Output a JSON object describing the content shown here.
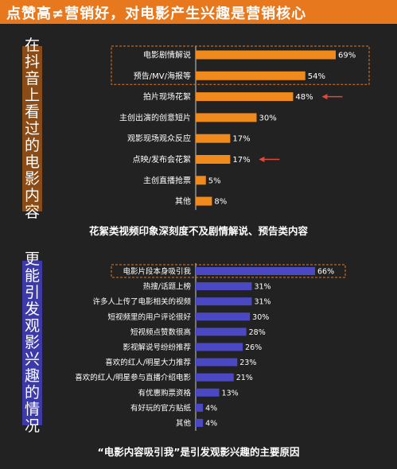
{
  "header": {
    "title": "点赞高≠营销好，对电影产生兴趣是营销核心"
  },
  "section1": {
    "side_label": "在抖音上看过的电影内容",
    "caption": "花絮类视频印象深刻度不及剧情解说、预告类内容"
  },
  "section2": {
    "side_label": "更能引发观影兴趣的情况",
    "caption": "“电影内容吸引我”是引发观影兴趣的主要原因"
  },
  "colors": {
    "header": "#e8781e",
    "orange_bar": "#f08a1c",
    "blue_bar": "#4b48c4",
    "arrow": "#e2473a",
    "background": "#222222"
  },
  "chart_data": [
    {
      "type": "bar",
      "orientation": "horizontal",
      "categories": [
        "电影剧情解说",
        "预告/MV/海报等",
        "拍片现场花絮",
        "主创出演的创意短片",
        "观影现场观众反应",
        "点映/发布会花絮",
        "主创直播抢票",
        "其他"
      ],
      "values": [
        69,
        54,
        48,
        30,
        17,
        17,
        5,
        8
      ],
      "value_labels": [
        "69%",
        "54%",
        "48%",
        "30%",
        "17%",
        "17%",
        "5%",
        "8%"
      ],
      "highlight_box": [
        0,
        1
      ],
      "arrows": [
        2,
        5
      ],
      "title": "",
      "xlabel": "",
      "ylabel": "",
      "xlim": [
        0,
        100
      ]
    },
    {
      "type": "bar",
      "orientation": "horizontal",
      "categories": [
        "电影片段本身吸引我",
        "热搜/话题上榜",
        "许多人上传了电影相关的视频",
        "短视频里的用户评论很好",
        "短视频点赞数很高",
        "影视解说号纷纷推荐",
        "喜欢的红人/明星大力推荐",
        "喜欢的红人/明星参与直播介绍电影",
        "有优惠购票资格",
        "有好玩的官方贴纸",
        "其他"
      ],
      "values": [
        66,
        31,
        31,
        30,
        28,
        26,
        23,
        21,
        13,
        4,
        4
      ],
      "value_labels": [
        "66%",
        "31%",
        "31%",
        "30%",
        "28%",
        "26%",
        "23%",
        "21%",
        "13%",
        "4%",
        "4%"
      ],
      "highlight_box": [
        0
      ],
      "arrows": [],
      "title": "",
      "xlabel": "",
      "ylabel": "",
      "xlim": [
        0,
        100
      ]
    }
  ]
}
